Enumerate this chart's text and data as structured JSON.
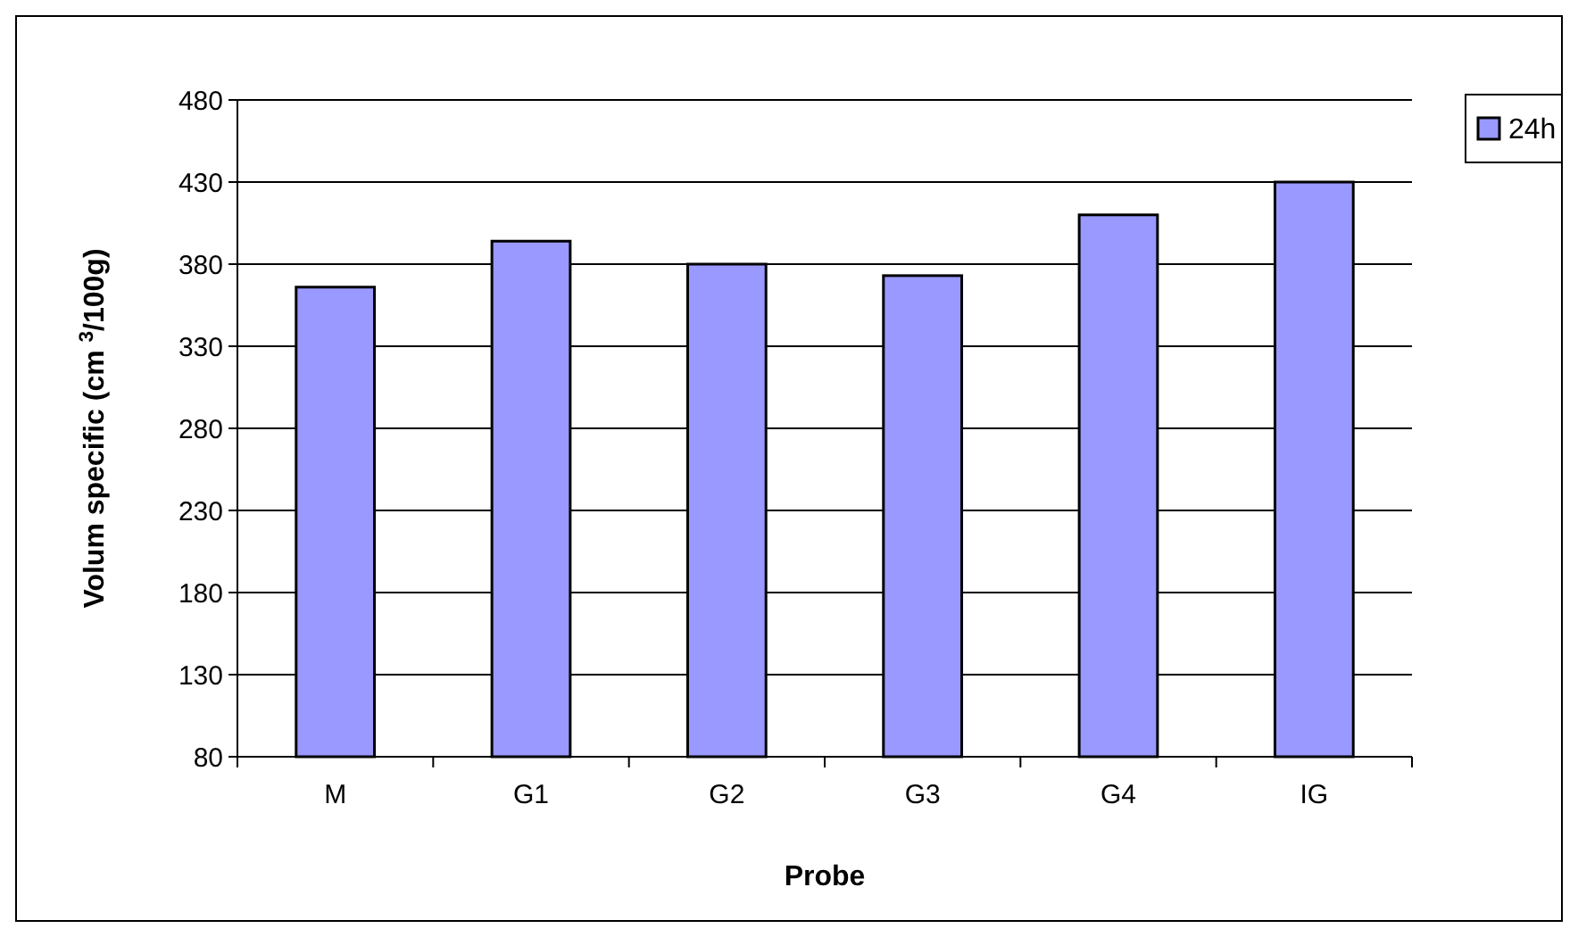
{
  "chart_data": {
    "type": "bar",
    "xlabel": "Probe",
    "ylabel": "Volum specific (cm $^{3}$/100g)",
    "categories": [
      "M",
      "G1",
      "G2",
      "G3",
      "G4",
      "IG"
    ],
    "series": [
      {
        "name": "24h",
        "color": "#9999ff",
        "values": [
          366,
          394,
          380,
          373,
          410,
          430
        ]
      }
    ],
    "ylim": [
      80,
      480
    ],
    "yticks": [
      80,
      130,
      180,
      230,
      280,
      330,
      380,
      430,
      480
    ],
    "grid": "y",
    "legend": "top right"
  }
}
